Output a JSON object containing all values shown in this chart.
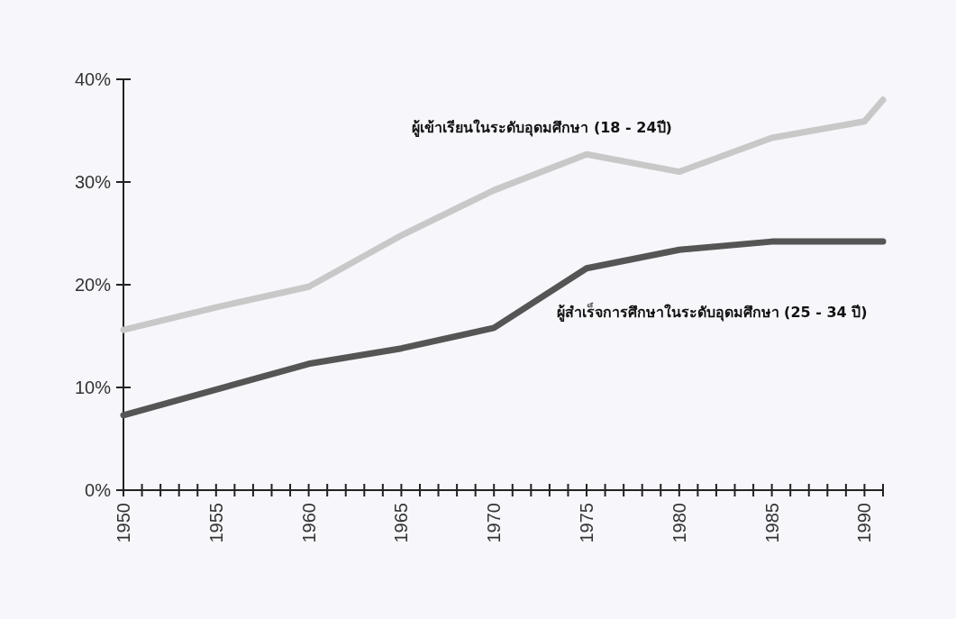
{
  "chart_data": {
    "type": "line",
    "x": [
      1950,
      1955,
      1960,
      1965,
      1970,
      1975,
      1980,
      1985,
      1990,
      1991
    ],
    "series": [
      {
        "name": "ผู้เข้าเรียนในระดับอุดมศึกษา (18 - 24ปี)",
        "color": "#c8c8c8",
        "values": [
          15.6,
          17.8,
          19.8,
          24.8,
          29.2,
          32.7,
          31.0,
          34.3,
          35.9,
          38.0
        ]
      },
      {
        "name": "ผู้สำเร็จการศึกษาในระดับอุดมศึกษา (25 - 34 ปี)",
        "color": "#555555",
        "values": [
          7.3,
          9.8,
          12.3,
          13.8,
          15.8,
          21.6,
          23.4,
          24.2,
          24.2,
          24.2
        ]
      }
    ],
    "xlim": [
      1950,
      1991
    ],
    "xticks": [
      1950,
      {
        "value": 1951,
        "label": null
      },
      {
        "value": 1952,
        "label": null
      },
      {
        "value": 1953,
        "label": null
      },
      {
        "value": 1954,
        "label": null
      },
      1955,
      {
        "value": 1956,
        "label": null
      },
      {
        "value": 1957,
        "label": null
      },
      {
        "value": 1958,
        "label": null
      },
      {
        "value": 1959,
        "label": null
      },
      1960,
      {
        "value": 1961,
        "label": null
      },
      {
        "value": 1962,
        "label": null
      },
      {
        "value": 1963,
        "label": null
      },
      {
        "value": 1964,
        "label": null
      },
      1965,
      {
        "value": 1966,
        "label": null
      },
      {
        "value": 1967,
        "label": null
      },
      {
        "value": 1968,
        "label": null
      },
      {
        "value": 1969,
        "label": null
      },
      1970,
      {
        "value": 1971,
        "label": null
      },
      {
        "value": 1972,
        "label": null
      },
      {
        "value": 1973,
        "label": null
      },
      {
        "value": 1974,
        "label": null
      },
      1975,
      {
        "value": 1976,
        "label": null
      },
      {
        "value": 1977,
        "label": null
      },
      {
        "value": 1978,
        "label": null
      },
      {
        "value": 1979,
        "label": null
      },
      1980,
      {
        "value": 1981,
        "label": null
      },
      {
        "value": 1982,
        "label": null
      },
      {
        "value": 1983,
        "label": null
      },
      {
        "value": 1984,
        "label": null
      },
      1985,
      {
        "value": 1986,
        "label": null
      },
      {
        "value": 1987,
        "label": null
      },
      {
        "value": 1988,
        "label": null
      },
      {
        "value": 1989,
        "label": null
      },
      1990,
      {
        "value": 1991,
        "label": null
      }
    ],
    "ylim": [
      0,
      40
    ],
    "yticks": [
      {
        "value": 0,
        "label": "0%"
      },
      {
        "value": 10,
        "label": "10%"
      },
      {
        "value": 20,
        "label": "20%"
      },
      {
        "value": 30,
        "label": "30%"
      },
      {
        "value": 40,
        "label": "40%"
      }
    ],
    "grid": false,
    "marker": "none",
    "line_style": "solid"
  }
}
